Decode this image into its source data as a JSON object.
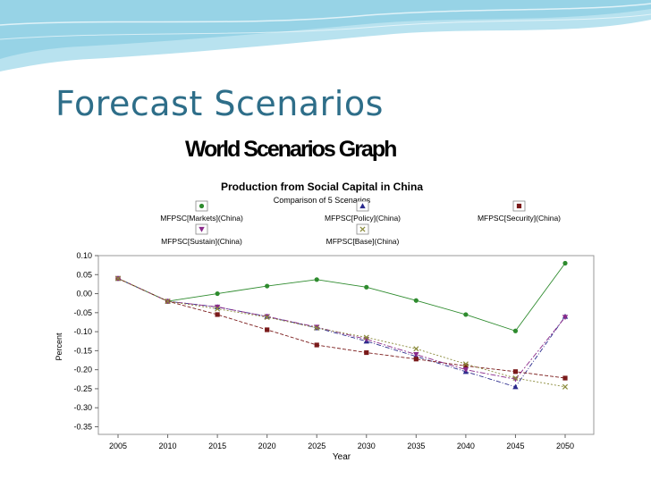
{
  "slide": {
    "title": "Forecast Scenarios",
    "heading": "World Scenarios Graph"
  },
  "colors": {
    "title": "#2e6e89",
    "wave": "#8fcfe3",
    "plot_border": "#999999"
  },
  "chart_data": {
    "type": "line",
    "title": "Production from Social Capital in China",
    "subtitle": "Comparison of 5 Scenarios",
    "xlabel": "Year",
    "ylabel": "Percent",
    "x": [
      2005,
      2010,
      2015,
      2020,
      2025,
      2030,
      2035,
      2040,
      2045,
      2050
    ],
    "y_ticks": [
      "0.10",
      "0.05",
      "0.00",
      "-0.05",
      "-0.10",
      "-0.15",
      "-0.20",
      "-0.25",
      "-0.30",
      "-0.35"
    ],
    "x_ticks": [
      "2005",
      "2010",
      "2015",
      "2020",
      "2025",
      "2030",
      "2035",
      "2040",
      "2045",
      "2050"
    ],
    "xlim": [
      2005,
      2050
    ],
    "ylim": [
      -0.37,
      0.1
    ],
    "grid": false,
    "legend_position": "top",
    "series": [
      {
        "name": "MFPSC[Markets](China)",
        "marker": "circle",
        "color": "#2e8b2e",
        "values": [
          0.04,
          -0.02,
          0.0,
          0.02,
          0.037,
          0.017,
          -0.018,
          -0.055,
          -0.098,
          0.08
        ]
      },
      {
        "name": "MFPSC[Policy](China)",
        "marker": "triangle-up",
        "color": "#2a2a8c",
        "values": [
          0.04,
          -0.02,
          -0.035,
          -0.06,
          -0.09,
          -0.125,
          -0.165,
          -0.205,
          -0.245,
          -0.06
        ]
      },
      {
        "name": "MFPSC[Security](China)",
        "marker": "square",
        "color": "#7a1a1a",
        "values": [
          0.04,
          -0.02,
          -0.055,
          -0.095,
          -0.135,
          -0.155,
          -0.172,
          -0.19,
          -0.205,
          -0.222
        ]
      },
      {
        "name": "MFPSC[Sustain](China)",
        "marker": "triangle-down",
        "color": "#8a2a8a",
        "values": [
          0.04,
          -0.02,
          -0.035,
          -0.06,
          -0.088,
          -0.12,
          -0.16,
          -0.2,
          -0.225,
          -0.062
        ]
      },
      {
        "name": "MFPSC[Base](China)",
        "marker": "x",
        "color": "#8a8a3a",
        "values": [
          0.04,
          -0.02,
          -0.04,
          -0.062,
          -0.09,
          -0.115,
          -0.145,
          -0.185,
          -0.222,
          -0.245
        ]
      }
    ]
  }
}
